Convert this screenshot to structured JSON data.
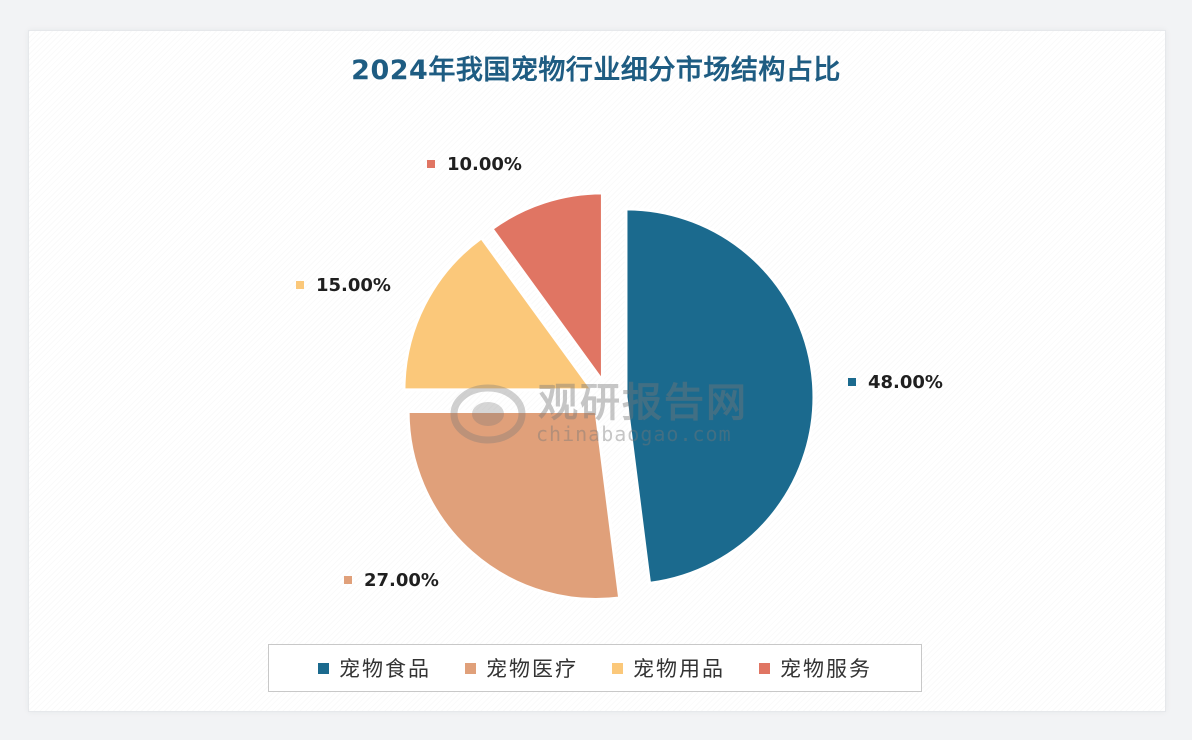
{
  "colors": {
    "food": "#1b6a8e",
    "medical": "#e0a07a",
    "supplies": "#fbc87a",
    "service": "#e07563"
  },
  "watermark": {
    "text": "观研报告网",
    "url": "chinabaogao.com"
  },
  "chart_data": {
    "type": "pie",
    "title": "2024年我国宠物行业细分市场结构占比",
    "categories": [
      "宠物食品",
      "宠物医疗",
      "宠物用品",
      "宠物服务"
    ],
    "values": [
      48.0,
      27.0,
      15.0,
      10.0
    ],
    "data_labels": [
      "48.00%",
      "27.00%",
      "15.00%",
      "10.00%"
    ],
    "exploded": true,
    "legend_position": "bottom"
  }
}
